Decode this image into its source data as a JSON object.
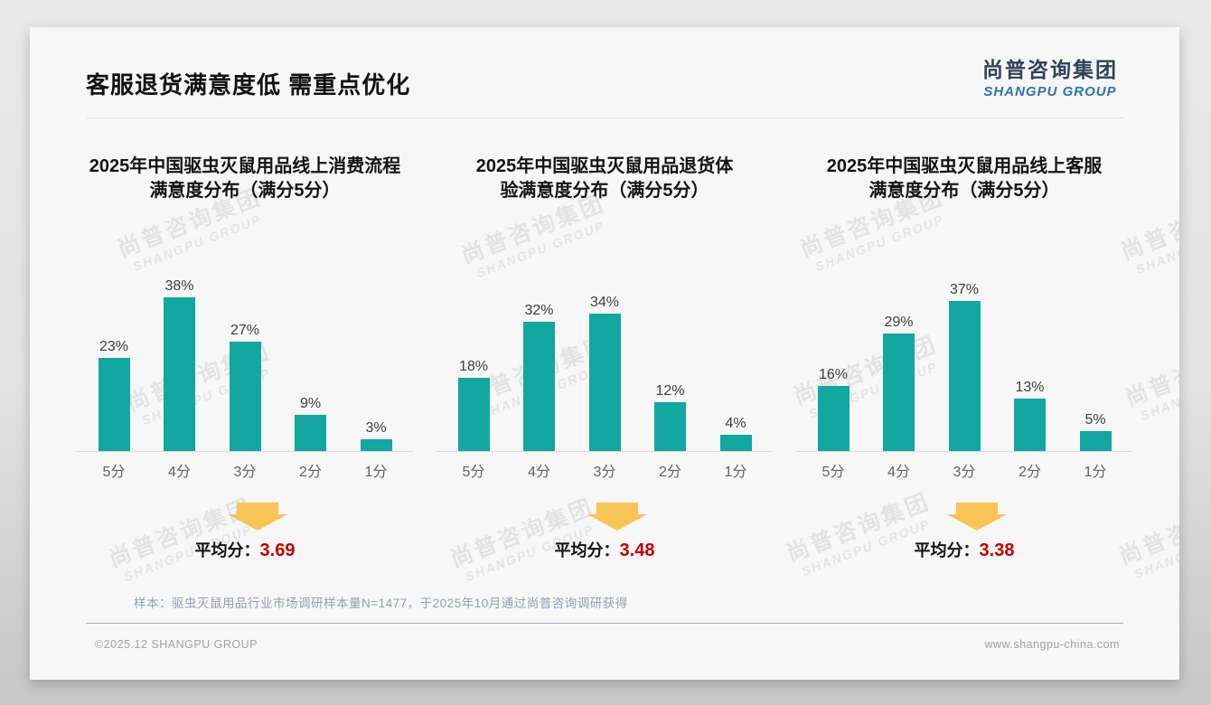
{
  "header": {
    "title": "客服退货满意度低 需重点优化"
  },
  "logo": {
    "cn": "尚普咨询集团",
    "en": "SHANGPU GROUP"
  },
  "watermark": {
    "line1": "尚普咨询集团",
    "line2": "SHANGPU GROUP"
  },
  "chart_data": [
    {
      "type": "bar",
      "title": "2025年中国驱虫灭鼠用品线上消费流程满意度分布（满分5分）",
      "title_lines": [
        "2025年中国驱虫灭鼠用品线上消费流程",
        "满意度分布（满分5分）"
      ],
      "categories": [
        "5分",
        "4分",
        "3分",
        "2分",
        "1分"
      ],
      "values": [
        23,
        38,
        27,
        9,
        3
      ],
      "unit": "%",
      "ylim": [
        0,
        50
      ],
      "grid": false,
      "average_label": "平均分：",
      "average_value": "3.69"
    },
    {
      "type": "bar",
      "title": "2025年中国驱虫灭鼠用品退货体验满意度分布（满分5分）",
      "title_lines": [
        "2025年中国驱虫灭鼠用品退货体",
        "验满意度分布（满分5分）"
      ],
      "categories": [
        "5分",
        "4分",
        "3分",
        "2分",
        "1分"
      ],
      "values": [
        18,
        32,
        34,
        12,
        4
      ],
      "unit": "%",
      "ylim": [
        0,
        50
      ],
      "grid": false,
      "average_label": "平均分：",
      "average_value": "3.48"
    },
    {
      "type": "bar",
      "title": "2025年中国驱虫灭鼠用品线上客服满意度分布（满分5分）",
      "title_lines": [
        "2025年中国驱虫灭鼠用品线上客服",
        "满意度分布（满分5分）"
      ],
      "categories": [
        "5分",
        "4分",
        "3分",
        "2分",
        "1分"
      ],
      "values": [
        16,
        29,
        37,
        13,
        5
      ],
      "unit": "%",
      "ylim": [
        0,
        50
      ],
      "grid": false,
      "average_label": "平均分：",
      "average_value": "3.38"
    }
  ],
  "colors": {
    "bar": "#12A7A1",
    "arrow": "#F7C455",
    "average_value": "#C00000",
    "logo_cn": "#2F4358",
    "logo_en": "#2E74B5"
  },
  "footer": {
    "note": "样本：驱虫灭鼠用品行业市场调研样本量N=1477，于2025年10月通过尚普咨询调研获得",
    "copyright": "©2025.12 SHANGPU GROUP",
    "website": "www.shangpu-china.com"
  }
}
